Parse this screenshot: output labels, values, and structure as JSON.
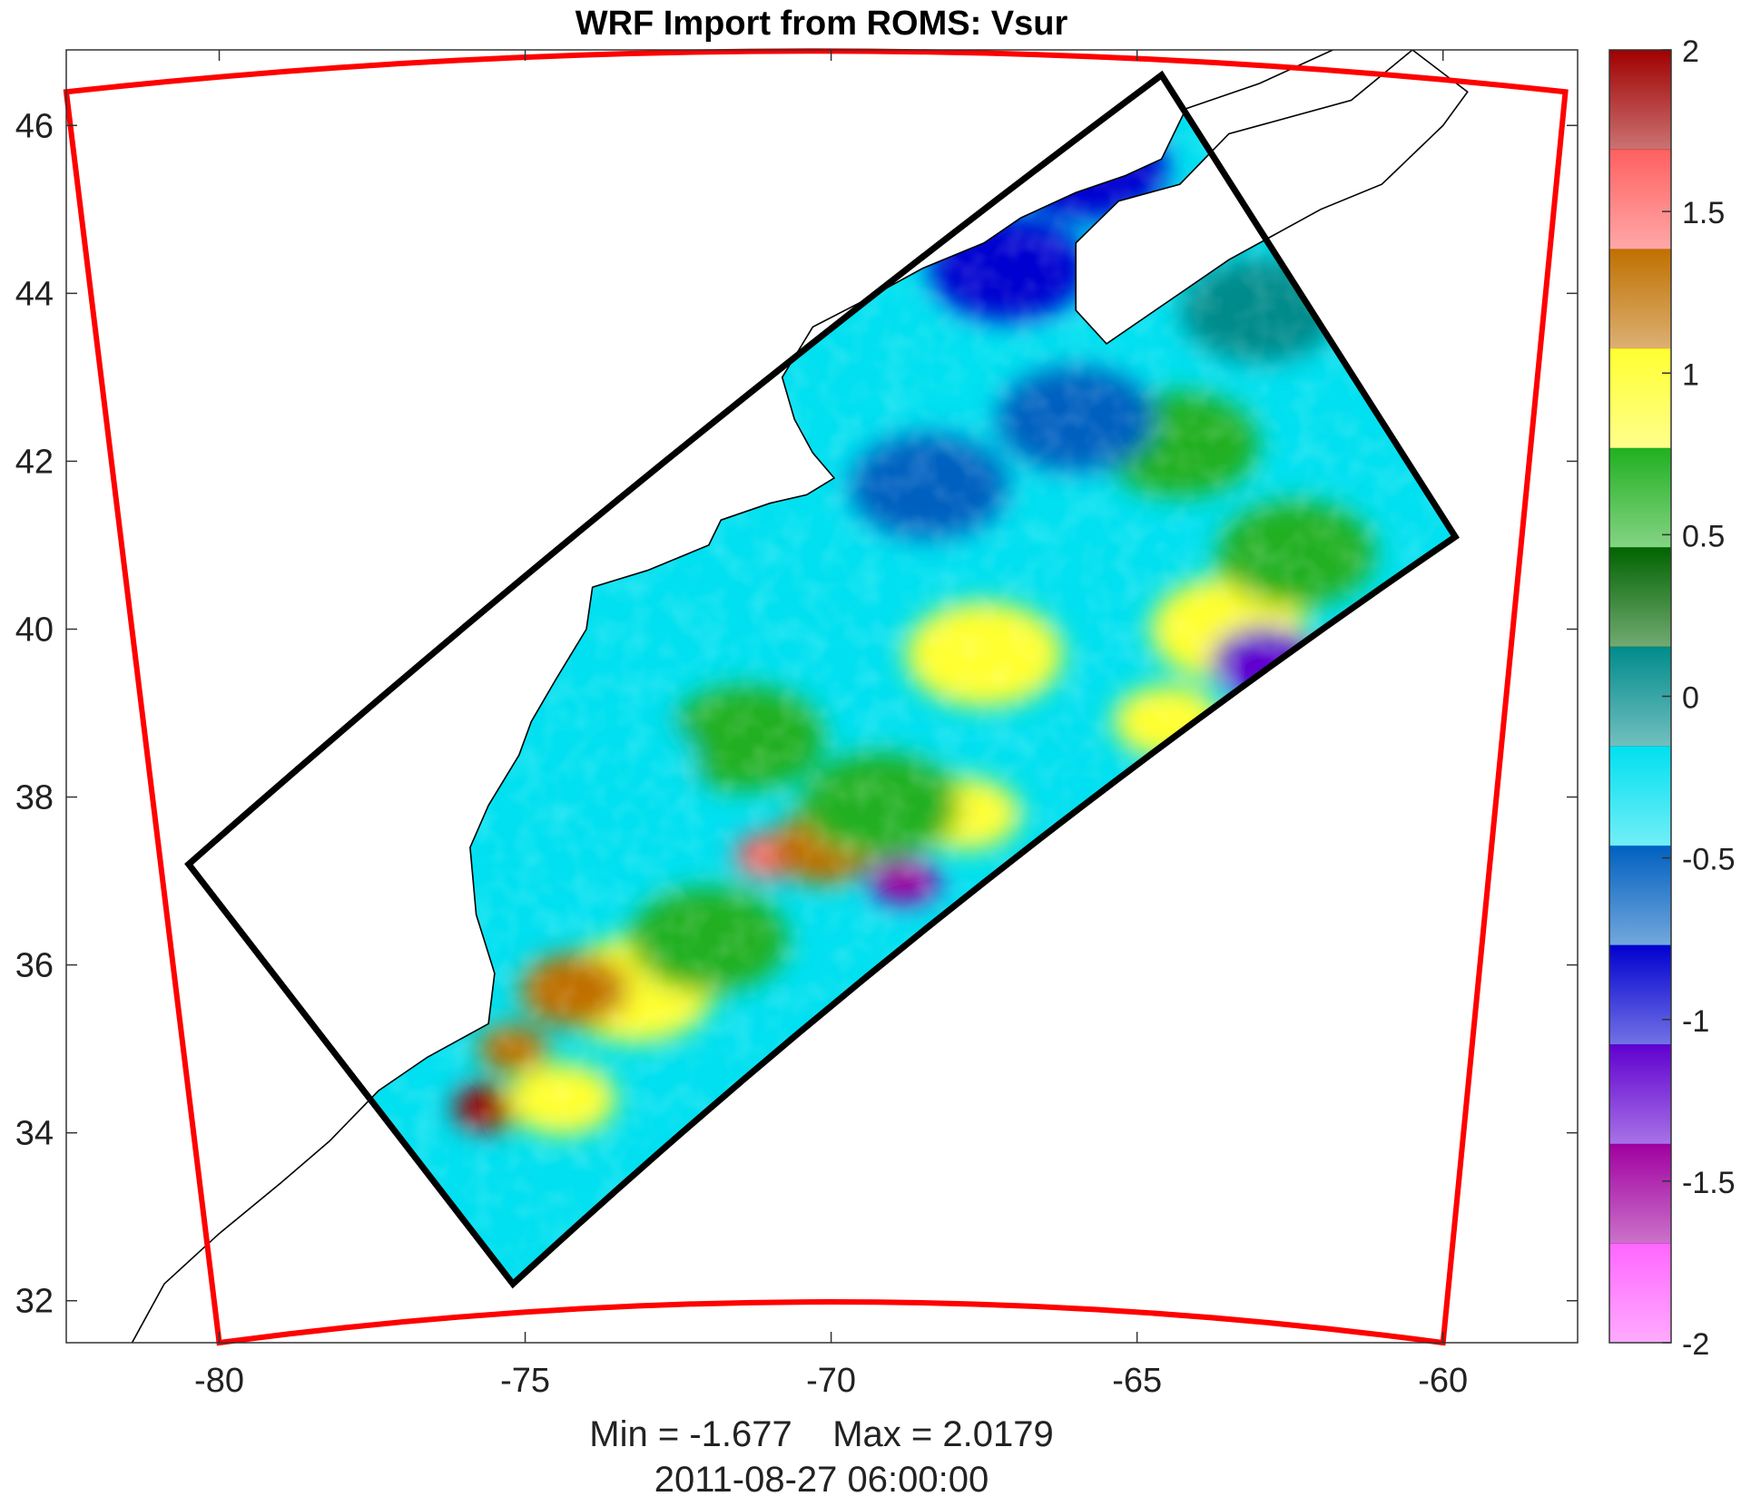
{
  "chart_data": {
    "type": "heatmap",
    "title": "WRF Import from ROMS: Vsur",
    "xlabel": "",
    "ylabel": "",
    "xlim": [
      -82.5,
      -57.8
    ],
    "ylim": [
      31.5,
      46.9
    ],
    "xticks": [
      -80,
      -75,
      -70,
      -65,
      -60
    ],
    "yticks": [
      32,
      34,
      36,
      38,
      40,
      42,
      44,
      46
    ],
    "colorbar": {
      "range": [
        -2,
        2
      ],
      "ticks": [
        -2,
        -1.5,
        -1,
        -0.5,
        0,
        0.5,
        1,
        1.5,
        2
      ],
      "colors": [
        "#ff66ff",
        "#a000a0",
        "#6000d0",
        "#0000d0",
        "#0060c0",
        "#00e0f0",
        "#008b8b",
        "#006400",
        "#20b020",
        "#ffff30",
        "#c07000",
        "#ff6060",
        "#a00000"
      ]
    },
    "outer_domain_corners": [
      [
        -82.5,
        46.4
      ],
      [
        -58.0,
        46.4
      ],
      [
        -60.0,
        31.5
      ],
      [
        -80.0,
        31.5
      ]
    ],
    "inner_domain_corners": [
      [
        -80.5,
        37.2
      ],
      [
        -64.6,
        46.6
      ],
      [
        -59.8,
        41.1
      ],
      [
        -75.2,
        32.2
      ]
    ],
    "field_blobs": [
      {
        "x": -75.6,
        "y": 34.3,
        "value": 1.9
      },
      {
        "x": -75.2,
        "y": 35.0,
        "value": 1.35
      },
      {
        "x": -74.4,
        "y": 34.4,
        "value": 1.0
      },
      {
        "x": -73.2,
        "y": 35.7,
        "value": 0.8
      },
      {
        "x": -74.2,
        "y": 35.7,
        "value": 1.2
      },
      {
        "x": -71.0,
        "y": 37.3,
        "value": 1.4
      },
      {
        "x": -70.1,
        "y": 37.4,
        "value": 1.2
      },
      {
        "x": -72.0,
        "y": 36.3,
        "value": 0.6
      },
      {
        "x": -67.8,
        "y": 37.8,
        "value": 1.0
      },
      {
        "x": -69.2,
        "y": 37.9,
        "value": 0.7
      },
      {
        "x": -68.8,
        "y": 37.0,
        "value": -1.6
      },
      {
        "x": -67.5,
        "y": 39.7,
        "value": 0.9
      },
      {
        "x": -64.5,
        "y": 38.9,
        "value": 0.95
      },
      {
        "x": -63.5,
        "y": 40.0,
        "value": 0.8
      },
      {
        "x": -62.9,
        "y": 39.6,
        "value": -1.2
      },
      {
        "x": -62.4,
        "y": 40.9,
        "value": 0.7
      },
      {
        "x": -71.4,
        "y": 38.7,
        "value": 0.7
      },
      {
        "x": -64.3,
        "y": 42.2,
        "value": 0.6
      },
      {
        "x": -68.4,
        "y": 41.7,
        "value": -0.7
      },
      {
        "x": -66.0,
        "y": 42.5,
        "value": -0.6
      },
      {
        "x": -67.1,
        "y": 44.3,
        "value": -0.8
      },
      {
        "x": -65.8,
        "y": 45.5,
        "value": -0.9
      },
      {
        "x": -73.5,
        "y": 38.4,
        "value": -0.4
      },
      {
        "x": -63.0,
        "y": 43.8,
        "value": 0.15
      }
    ],
    "stats": {
      "min": -1.677,
      "max": 2.0179
    },
    "valid_time": "2011-08-27 06:00:00"
  },
  "footer": {
    "stats_text": "Min = -1.677    Max = 2.0179",
    "time_text": "2011-08-27 06:00:00"
  },
  "colors": {
    "outer_box": "#ff0000",
    "inner_box": "#000000",
    "coast": "#000000"
  }
}
